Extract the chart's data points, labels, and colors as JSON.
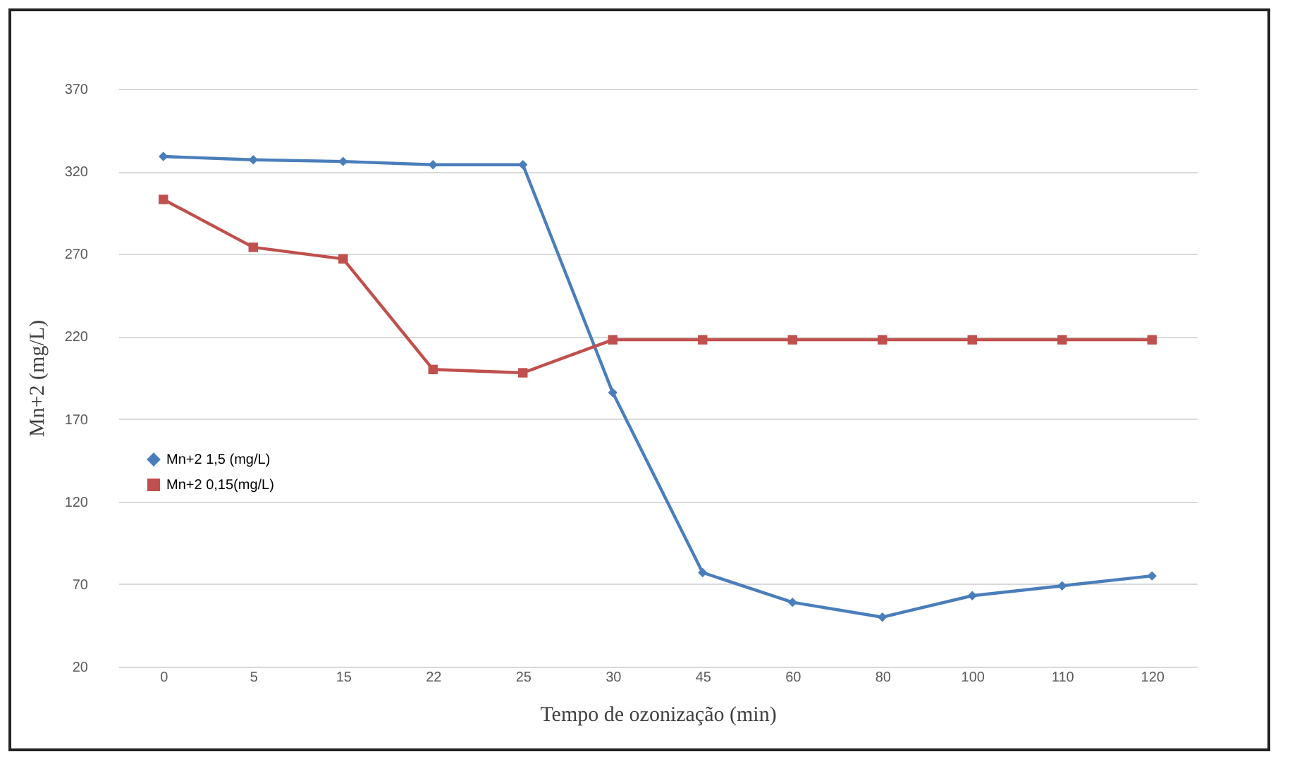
{
  "chart_data": {
    "type": "line",
    "xlabel": "Tempo de ozonização (min)",
    "ylabel": "Mn+2 (mg/L)",
    "categories": [
      "0",
      "5",
      "15",
      "22",
      "25",
      "30",
      "45",
      "60",
      "80",
      "100",
      "110",
      "120"
    ],
    "series": [
      {
        "name": "Mn+2 1,5 (mg/L)",
        "color": "#4a7ebb",
        "marker": "diamond",
        "values": [
          329,
          327,
          326,
          324,
          324,
          186,
          77,
          59,
          50,
          63,
          69,
          75
        ]
      },
      {
        "name": "Mn+2 0,15(mg/L)",
        "color": "#c0504d",
        "marker": "square",
        "values": [
          303,
          274,
          267,
          200,
          198,
          218,
          218,
          218,
          218,
          218,
          218,
          218
        ]
      }
    ],
    "ylim": [
      20,
      370
    ],
    "yticks": [
      20,
      70,
      120,
      170,
      220,
      270,
      320,
      370
    ],
    "grid": "y",
    "legend": "left"
  }
}
